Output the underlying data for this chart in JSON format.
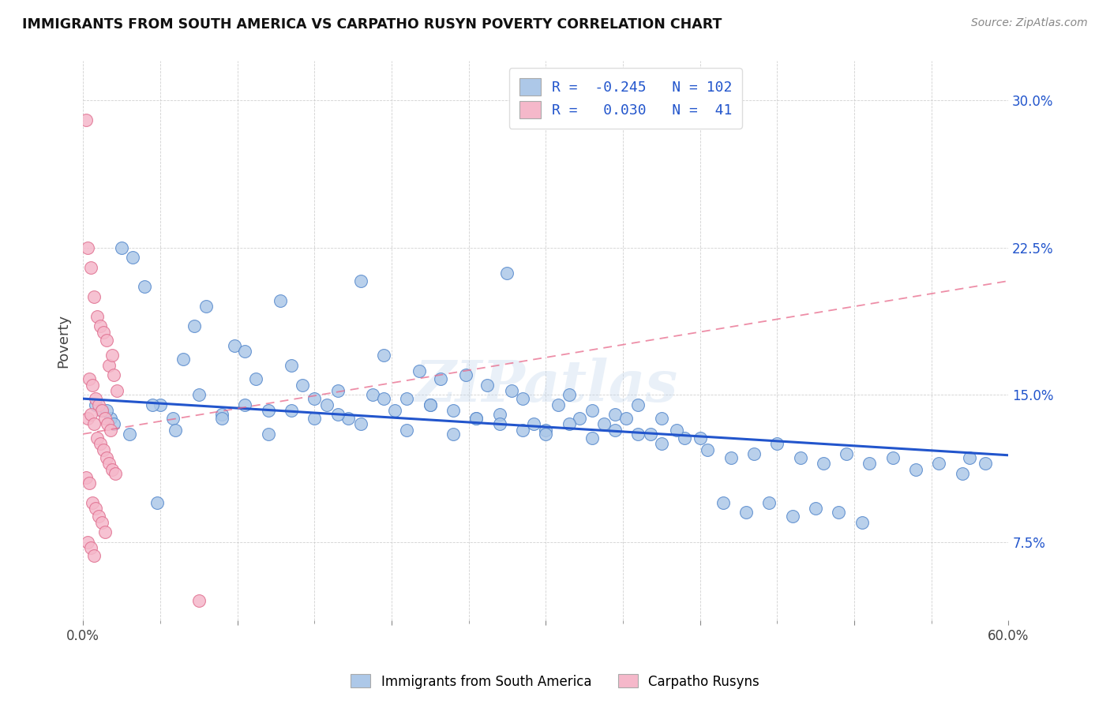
{
  "title": "IMMIGRANTS FROM SOUTH AMERICA VS CARPATHO RUSYN POVERTY CORRELATION CHART",
  "source": "Source: ZipAtlas.com",
  "xlim": [
    0,
    60
  ],
  "ylim": [
    3.5,
    32
  ],
  "ylabel": "Poverty",
  "blue_R": -0.245,
  "blue_N": 102,
  "pink_R": 0.03,
  "pink_N": 41,
  "blue_color": "#adc8e8",
  "pink_color": "#f5b8ca",
  "blue_edge_color": "#5588cc",
  "pink_edge_color": "#e07090",
  "blue_line_color": "#2255cc",
  "pink_line_color": "#e8688a",
  "watermark": "ZIPatlas",
  "legend_label_blue": "Immigrants from South America",
  "legend_label_pink": "Carpatho Rusyns",
  "blue_trend_intercept": 14.8,
  "blue_trend_slope": -0.048,
  "pink_trend_intercept": 13.0,
  "pink_trend_slope": 0.13,
  "blue_scatter_x": [
    0.8,
    1.2,
    1.8,
    2.5,
    3.2,
    4.0,
    5.0,
    5.8,
    6.5,
    7.2,
    8.0,
    9.0,
    9.8,
    10.5,
    11.2,
    12.0,
    12.8,
    13.5,
    14.2,
    15.0,
    15.8,
    16.5,
    17.2,
    18.0,
    18.8,
    19.5,
    20.2,
    21.0,
    21.8,
    22.5,
    23.2,
    24.0,
    24.8,
    25.5,
    26.2,
    27.0,
    27.8,
    28.5,
    29.2,
    30.0,
    30.8,
    31.5,
    32.2,
    33.0,
    33.8,
    34.5,
    35.2,
    36.0,
    36.8,
    37.5,
    1.5,
    2.0,
    3.0,
    4.5,
    6.0,
    7.5,
    9.0,
    10.5,
    12.0,
    13.5,
    15.0,
    16.5,
    18.0,
    19.5,
    21.0,
    22.5,
    24.0,
    25.5,
    27.0,
    28.5,
    30.0,
    31.5,
    33.0,
    34.5,
    36.0,
    37.5,
    39.0,
    40.5,
    42.0,
    43.5,
    45.0,
    46.5,
    48.0,
    49.5,
    51.0,
    52.5,
    54.0,
    55.5,
    57.0,
    58.5,
    38.5,
    40.0,
    41.5,
    43.0,
    44.5,
    46.0,
    47.5,
    49.0,
    50.5,
    57.5,
    27.5,
    4.8
  ],
  "blue_scatter_y": [
    14.5,
    14.2,
    13.8,
    22.5,
    22.0,
    20.5,
    14.5,
    13.8,
    16.8,
    18.5,
    19.5,
    14.0,
    17.5,
    17.2,
    15.8,
    14.2,
    19.8,
    16.5,
    15.5,
    14.8,
    14.5,
    15.2,
    13.8,
    20.8,
    15.0,
    17.0,
    14.2,
    14.8,
    16.2,
    14.5,
    15.8,
    14.2,
    16.0,
    13.8,
    15.5,
    14.0,
    15.2,
    14.8,
    13.5,
    13.2,
    14.5,
    15.0,
    13.8,
    14.2,
    13.5,
    14.0,
    13.8,
    14.5,
    13.0,
    13.8,
    14.2,
    13.5,
    13.0,
    14.5,
    13.2,
    15.0,
    13.8,
    14.5,
    13.0,
    14.2,
    13.8,
    14.0,
    13.5,
    14.8,
    13.2,
    14.5,
    13.0,
    13.8,
    13.5,
    13.2,
    13.0,
    13.5,
    12.8,
    13.2,
    13.0,
    12.5,
    12.8,
    12.2,
    11.8,
    12.0,
    12.5,
    11.8,
    11.5,
    12.0,
    11.5,
    11.8,
    11.2,
    11.5,
    11.0,
    11.5,
    13.2,
    12.8,
    9.5,
    9.0,
    9.5,
    8.8,
    9.2,
    9.0,
    8.5,
    11.8,
    21.2,
    9.5
  ],
  "pink_scatter_x": [
    0.2,
    0.3,
    0.5,
    0.7,
    0.9,
    1.1,
    1.3,
    1.5,
    1.7,
    1.9,
    0.4,
    0.6,
    0.8,
    1.0,
    1.2,
    1.4,
    1.6,
    1.8,
    2.0,
    2.2,
    0.3,
    0.5,
    0.7,
    0.9,
    1.1,
    1.3,
    1.5,
    1.7,
    1.9,
    2.1,
    0.2,
    0.4,
    0.6,
    0.8,
    1.0,
    1.2,
    1.4,
    0.3,
    0.5,
    0.7,
    7.5
  ],
  "pink_scatter_y": [
    29.0,
    22.5,
    21.5,
    20.0,
    19.0,
    18.5,
    18.2,
    17.8,
    16.5,
    17.0,
    15.8,
    15.5,
    14.8,
    14.5,
    14.2,
    13.8,
    13.5,
    13.2,
    16.0,
    15.2,
    13.8,
    14.0,
    13.5,
    12.8,
    12.5,
    12.2,
    11.8,
    11.5,
    11.2,
    11.0,
    10.8,
    10.5,
    9.5,
    9.2,
    8.8,
    8.5,
    8.0,
    7.5,
    7.2,
    6.8,
    4.5
  ]
}
